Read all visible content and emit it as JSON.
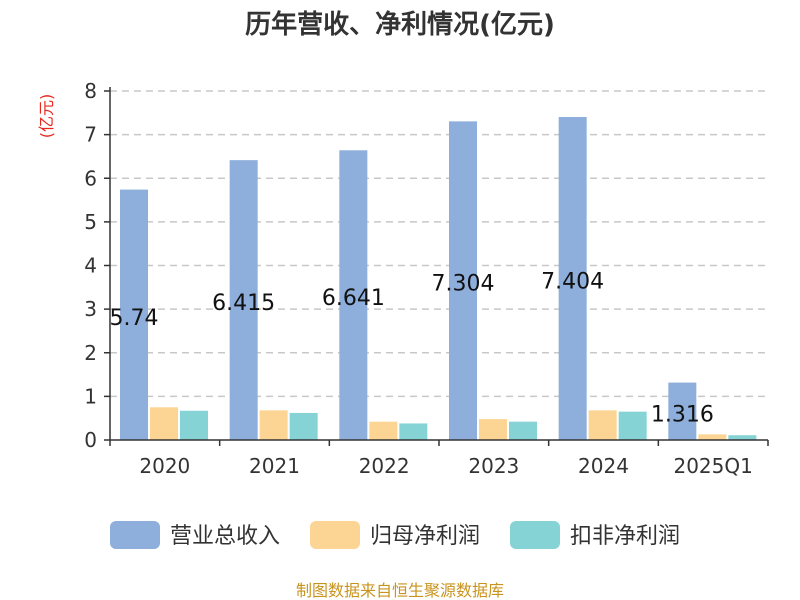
{
  "chart_data": {
    "type": "bar",
    "title": "历年营收、净利情况(亿元)",
    "unit_label": "(亿元)",
    "categories": [
      "2020",
      "2021",
      "2022",
      "2023",
      "2024",
      "2025Q1"
    ],
    "series": [
      {
        "name": "营业总收入",
        "color": "#8eaedc",
        "values": [
          5.74,
          6.415,
          6.641,
          7.304,
          7.404,
          1.316
        ],
        "labels": [
          "5.74",
          "6.415",
          "6.641",
          "7.304",
          "7.404",
          "1.316"
        ]
      },
      {
        "name": "归母净利润",
        "color": "#fcd594",
        "values": [
          0.75,
          0.68,
          0.42,
          0.48,
          0.68,
          0.13
        ]
      },
      {
        "name": "扣非净利润",
        "color": "#86d3d6",
        "values": [
          0.67,
          0.62,
          0.38,
          0.42,
          0.65,
          0.11
        ]
      }
    ],
    "y_ticks": [
      "0",
      "1",
      "2",
      "3",
      "4",
      "5",
      "6",
      "7",
      "8"
    ],
    "ylim": [
      0,
      8
    ],
    "grid": true,
    "legend_position": "bottom"
  },
  "source_text": "制图数据来自恒生聚源数据库"
}
